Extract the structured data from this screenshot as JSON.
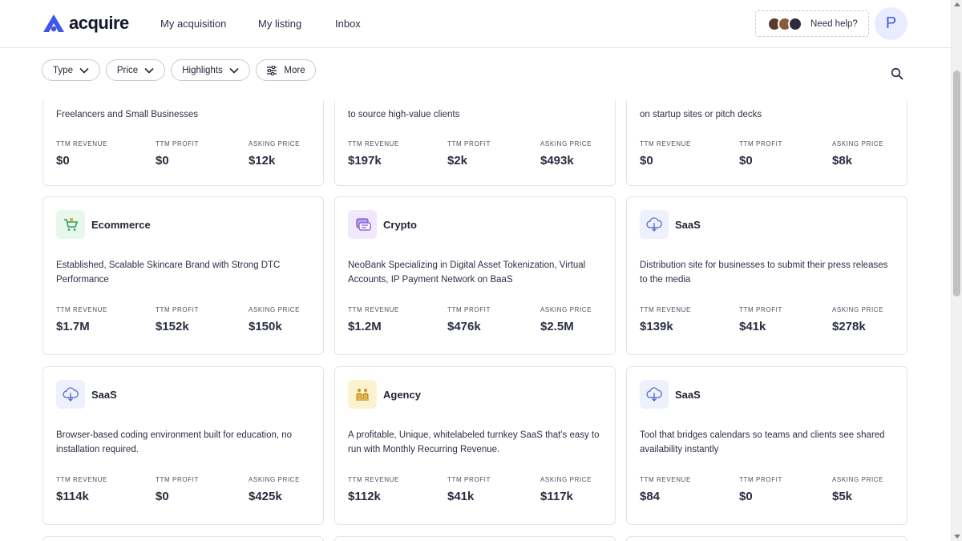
{
  "header": {
    "logo_text": "acquire",
    "nav": [
      "My acquisition",
      "My listing",
      "Inbox"
    ],
    "help_label": "Need help?",
    "profile_initial": "P"
  },
  "filters": {
    "type_label": "Type",
    "price_label": "Price",
    "highlights_label": "Highlights",
    "more_label": "More"
  },
  "metric_labels": {
    "revenue": "TTM REVENUE",
    "profit": "TTM PROFIT",
    "asking": "ASKING PRICE"
  },
  "listings": [
    {
      "category": "",
      "desc": "Freelancers and Small Businesses",
      "revenue": "$0",
      "profit": "$0",
      "asking": "$12k"
    },
    {
      "category": "",
      "desc": "to source high-value clients",
      "revenue": "$197k",
      "profit": "$2k",
      "asking": "$493k"
    },
    {
      "category": "",
      "desc": "on startup sites or pitch decks",
      "revenue": "$0",
      "profit": "$0",
      "asking": "$8k"
    },
    {
      "category": "Ecommerce",
      "desc": "Established, Scalable Skincare Brand with Strong DTC Performance",
      "revenue": "$1.7M",
      "profit": "$152k",
      "asking": "$150k"
    },
    {
      "category": "Crypto",
      "desc": "NeoBank Specializing in Digital Asset Tokenization, Virtual Accounts, IP Payment Network on BaaS",
      "revenue": "$1.2M",
      "profit": "$476k",
      "asking": "$2.5M"
    },
    {
      "category": "SaaS",
      "desc": "Distribution site for businesses to submit their press releases to the media",
      "revenue": "$139k",
      "profit": "$41k",
      "asking": "$278k"
    },
    {
      "category": "SaaS",
      "desc": "Browser-based coding environment built for education, no installation required.",
      "revenue": "$114k",
      "profit": "$0",
      "asking": "$425k"
    },
    {
      "category": "Agency",
      "desc": "A profitable, Unique, whitelabeled turnkey SaaS that's easy to run with Monthly Recurring Revenue.",
      "revenue": "$112k",
      "profit": "$41k",
      "asking": "$117k"
    },
    {
      "category": "SaaS",
      "desc": "Tool that bridges calendars so teams and clients see shared availability instantly",
      "revenue": "$84",
      "profit": "$0",
      "asking": "$5k"
    }
  ],
  "colors": {
    "brand": "#3d57e8",
    "ecommerce_bg": "#e8f7ee",
    "crypto_bg": "#efe9fb",
    "saas_bg": "#eef1fb",
    "agency_bg": "#fbf3cf"
  }
}
